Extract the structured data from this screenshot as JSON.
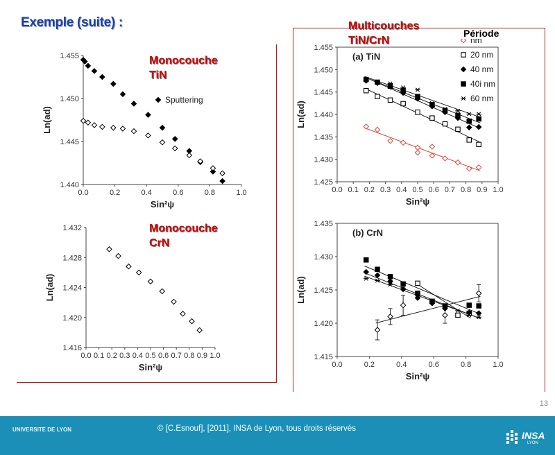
{
  "slide": {
    "title": "Exemple (suite) :",
    "page_number": "13",
    "copyright": "© [C.Esnouf], [2011], INSA de Lyon, tous droits réservés",
    "logo_left_top": "UNIVERSITÉ DE LYON",
    "logo_right": "INSA",
    "logo_right_sub": "LYON"
  },
  "annotations": {
    "mono_tin": "Monocouche\nTiN",
    "mono_crn": "Monocouche\nCrN",
    "multi": "Multicouches\nTiN/CrN",
    "period_label": "Période"
  },
  "colors": {
    "title": "#1f3f9f",
    "annotation": "#d40000",
    "frame": "#b51c1c",
    "footer": "#1b8fb7",
    "crn_series": "#d94a3a"
  },
  "chart_data": [
    {
      "type": "scatter",
      "panel": "monocouche-tin",
      "xlabel": "Sin²ψ",
      "ylabel": "Ln(ad)",
      "xlim": [
        0,
        1.0
      ],
      "ylim": [
        1.44,
        1.455
      ],
      "xticks": [
        "0.0",
        "0.2",
        "0.4",
        "0.6",
        "0.8",
        "1.0"
      ],
      "yticks": [
        "1.440",
        "1.445",
        "1.450",
        "1.455"
      ],
      "legend": [
        {
          "label": "Sputtering",
          "marker": "filled-diamond"
        }
      ],
      "series": [
        {
          "name": "Sputtering",
          "marker": "filled-diamond",
          "x": [
            0.0,
            0.01,
            0.03,
            0.07,
            0.12,
            0.19,
            0.25,
            0.32,
            0.41,
            0.5,
            0.58,
            0.67,
            0.74,
            0.82,
            0.88
          ],
          "y": [
            1.4545,
            1.4543,
            1.4538,
            1.4532,
            1.4525,
            1.4517,
            1.4505,
            1.4494,
            1.4481,
            1.4466,
            1.4453,
            1.4439,
            1.4426,
            1.4415,
            1.4404
          ]
        },
        {
          "marker": "open-diamond",
          "x": [
            0.0,
            0.03,
            0.07,
            0.12,
            0.19,
            0.25,
            0.32,
            0.41,
            0.5,
            0.58,
            0.67,
            0.74,
            0.82,
            0.88
          ],
          "y": [
            1.4474,
            1.4472,
            1.4469,
            1.4467,
            1.4466,
            1.4465,
            1.4462,
            1.4457,
            1.4449,
            1.4442,
            1.4434,
            1.4427,
            1.4419,
            1.4413
          ]
        }
      ]
    },
    {
      "type": "scatter",
      "panel": "monocouche-crn",
      "xlabel": "Sin²ψ",
      "ylabel": "Ln(ad)",
      "xlim": [
        0,
        1.0
      ],
      "ylim": [
        1.416,
        1.432
      ],
      "xticks": [
        "0.0",
        "0.1",
        "0.2",
        "0.3",
        "0.4",
        "0.5",
        "0.6",
        "0.7",
        "0.8",
        "0.9",
        "1.0"
      ],
      "yticks": [
        "1.416",
        "1.420",
        "1.424",
        "1.428",
        "1.432"
      ],
      "series": [
        {
          "marker": "open-diamond",
          "x": [
            0.18,
            0.25,
            0.33,
            0.41,
            0.5,
            0.59,
            0.68,
            0.75,
            0.82,
            0.88
          ],
          "y": [
            1.4291,
            1.4282,
            1.4268,
            1.426,
            1.4248,
            1.4235,
            1.4221,
            1.4205,
            1.4195,
            1.4183
          ]
        }
      ]
    },
    {
      "type": "scatter",
      "panel": "multicouches-a-tin",
      "title": "(a) TiN",
      "xlabel": "Sin²ψ",
      "ylabel": "Ln(ad)",
      "xlim": [
        0,
        1.0
      ],
      "ylim": [
        1.425,
        1.455
      ],
      "xticks": [
        "0.0",
        "0.1",
        "0.2",
        "0.3",
        "0.4",
        "0.5",
        "0.6",
        "0.7",
        "0.8",
        "0.9",
        "1.0"
      ],
      "yticks": [
        "1.425",
        "1.430",
        "1.435",
        "1.440",
        "1.445",
        "1.450",
        "1.455"
      ],
      "legend": [
        {
          "label": "nm",
          "marker": "open-diamond",
          "color": "#d94a3a"
        },
        {
          "label": "20 nm",
          "marker": "open-square"
        },
        {
          "label": "40 nm",
          "marker": "filled-diamond"
        },
        {
          "label": "40i nm",
          "marker": "filled-square"
        },
        {
          "label": "60 nm",
          "marker": "asterisk"
        }
      ],
      "series": [
        {
          "name": "nm",
          "marker": "open-diamond",
          "color": "#d94a3a",
          "x": [
            0.18,
            0.25,
            0.33,
            0.41,
            0.5,
            0.5,
            0.59,
            0.59,
            0.67,
            0.75,
            0.82,
            0.88
          ],
          "y": [
            1.4373,
            1.4366,
            1.4341,
            1.4337,
            1.4326,
            1.4315,
            1.4328,
            1.4308,
            1.4302,
            1.4293,
            1.4279,
            1.4282
          ]
        },
        {
          "name": "20 nm",
          "marker": "open-square",
          "x": [
            0.18,
            0.25,
            0.33,
            0.41,
            0.5,
            0.59,
            0.67,
            0.75,
            0.82,
            0.88
          ],
          "y": [
            1.4453,
            1.444,
            1.4432,
            1.4424,
            1.4405,
            1.4392,
            1.4379,
            1.4367,
            1.4343,
            1.4333
          ]
        },
        {
          "name": "40 nm",
          "marker": "filled-diamond",
          "x": [
            0.18,
            0.25,
            0.33,
            0.41,
            0.5,
            0.59,
            0.67,
            0.75,
            0.82,
            0.88
          ],
          "y": [
            1.4475,
            1.447,
            1.4462,
            1.4448,
            1.4435,
            1.4418,
            1.4405,
            1.4392,
            1.4371,
            1.4372
          ]
        },
        {
          "name": "40i nm",
          "marker": "filled-square",
          "x": [
            0.18,
            0.25,
            0.33,
            0.41,
            0.5,
            0.59,
            0.67,
            0.75,
            0.82,
            0.88
          ],
          "y": [
            1.4478,
            1.4472,
            1.4463,
            1.4453,
            1.444,
            1.4422,
            1.4409,
            1.4398,
            1.4385,
            1.439
          ]
        },
        {
          "name": "60 nm",
          "marker": "asterisk",
          "x": [
            0.18,
            0.25,
            0.33,
            0.41,
            0.5,
            0.59,
            0.67,
            0.75,
            0.82,
            0.88
          ],
          "y": [
            1.4479,
            1.4471,
            1.4469,
            1.446,
            1.4455,
            1.4425,
            1.4412,
            1.4408,
            1.4401,
            1.4401
          ]
        }
      ]
    },
    {
      "type": "scatter",
      "panel": "multicouches-b-crn",
      "title": "(b) CrN",
      "xlabel": "Sin²ψ",
      "ylabel": "Ln(ad)",
      "xlim": [
        0,
        1.0
      ],
      "ylim": [
        1.415,
        1.435
      ],
      "xticks": [
        "0.0",
        "0.2",
        "0.4",
        "0.6",
        "0.8",
        "1.0"
      ],
      "yticks": [
        "1.415",
        "1.420",
        "1.425",
        "1.430",
        "1.435"
      ],
      "series": [
        {
          "marker": "open-diamond",
          "x": [
            0.25,
            0.33,
            0.41,
            0.67,
            0.88
          ],
          "y": [
            1.419,
            1.421,
            1.4227,
            1.4212,
            1.4245
          ]
        },
        {
          "marker": "open-square",
          "x": [
            0.5,
            0.75,
            0.82
          ],
          "y": [
            1.426,
            1.4212,
            1.4215
          ]
        },
        {
          "marker": "filled-square",
          "x": [
            0.18,
            0.25,
            0.33,
            0.41,
            0.5,
            0.59,
            0.67,
            0.82,
            0.88
          ],
          "y": [
            1.4295,
            1.4281,
            1.427,
            1.4259,
            1.4245,
            1.4233,
            1.4226,
            1.4227,
            1.4226
          ]
        },
        {
          "marker": "filled-diamond",
          "x": [
            0.18,
            0.25,
            0.33,
            0.41,
            0.5,
            0.59,
            0.67,
            0.82,
            0.88
          ],
          "y": [
            1.4277,
            1.4272,
            1.4263,
            1.4251,
            1.4238,
            1.423,
            1.4222,
            1.4216,
            1.4215
          ]
        },
        {
          "marker": "asterisk",
          "x": [
            0.18,
            0.25,
            0.33,
            0.41,
            0.5,
            0.59,
            0.67,
            0.75,
            0.82,
            0.88
          ],
          "y": [
            1.4267,
            1.4264,
            1.4258,
            1.4252,
            1.4243,
            1.4233,
            1.4226,
            1.4219,
            1.4212,
            1.4209
          ]
        }
      ]
    }
  ]
}
